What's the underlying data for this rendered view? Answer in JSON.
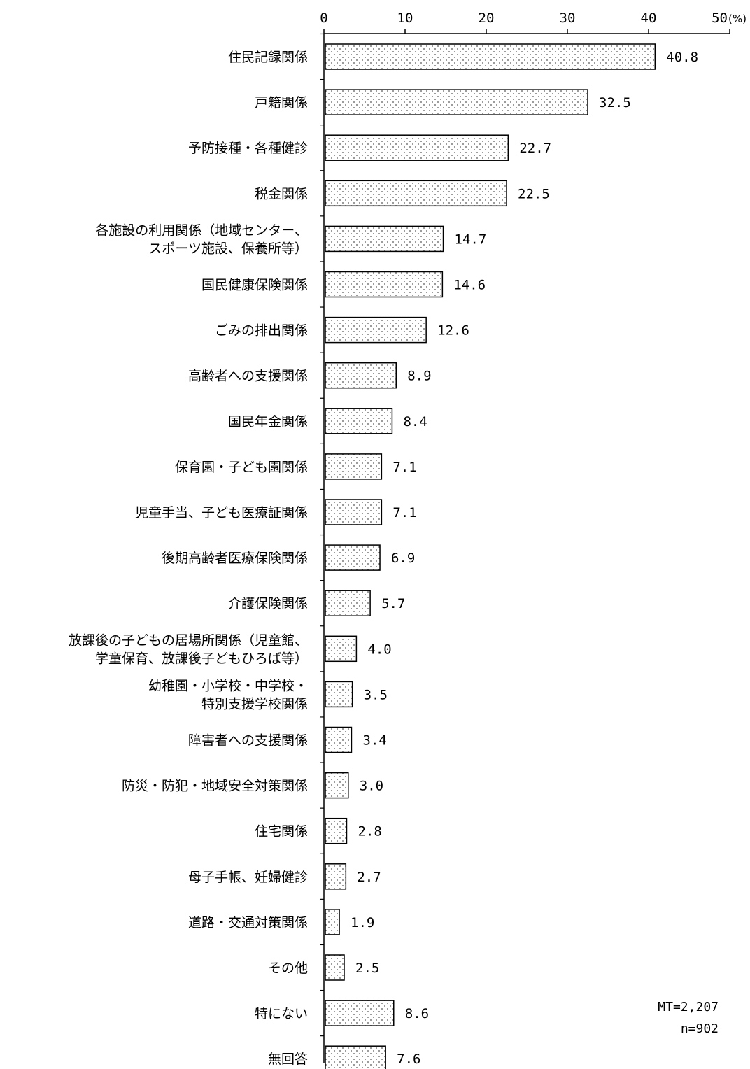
{
  "chart_data": {
    "type": "bar",
    "orientation": "horizontal",
    "xlim": [
      0,
      50
    ],
    "x_ticks": [
      "0",
      "10",
      "20",
      "30",
      "40",
      "50"
    ],
    "x_unit": "(%)",
    "categories": [
      [
        "住民記録関係"
      ],
      [
        "戸籍関係"
      ],
      [
        "予防接種・各種健診"
      ],
      [
        "税金関係"
      ],
      [
        "各施設の利用関係（地域センター、",
        "スポーツ施設、保養所等）"
      ],
      [
        "国民健康保険関係"
      ],
      [
        "ごみの排出関係"
      ],
      [
        "高齢者への支援関係"
      ],
      [
        "国民年金関係"
      ],
      [
        "保育園・子ども園関係"
      ],
      [
        "児童手当、子ども医療証関係"
      ],
      [
        "後期高齢者医療保険関係"
      ],
      [
        "介護保険関係"
      ],
      [
        "放課後の子どもの居場所関係（児童館、",
        "学童保育、放課後子どもひろば等）"
      ],
      [
        "幼稚園・小学校・中学校・",
        "特別支援学校関係"
      ],
      [
        "障害者への支援関係"
      ],
      [
        "防災・防犯・地域安全対策関係"
      ],
      [
        "住宅関係"
      ],
      [
        "母子手帳、妊婦健診"
      ],
      [
        "道路・交通対策関係"
      ],
      [
        "その他"
      ],
      [
        "特にない"
      ],
      [
        "無回答"
      ]
    ],
    "values": [
      40.8,
      32.5,
      22.7,
      22.5,
      14.7,
      14.6,
      12.6,
      8.9,
      8.4,
      7.1,
      7.1,
      6.9,
      5.7,
      4.0,
      3.5,
      3.4,
      3.0,
      2.8,
      2.7,
      1.9,
      2.5,
      8.6,
      7.6
    ],
    "value_labels": [
      "40.8",
      "32.5",
      "22.7",
      "22.5",
      "14.7",
      "14.6",
      "12.6",
      "8.9",
      "8.4",
      "7.1",
      "7.1",
      "6.9",
      "5.7",
      "4.0",
      "3.5",
      "3.4",
      "3.0",
      "2.8",
      "2.7",
      "1.9",
      "2.5",
      "8.6",
      "7.6"
    ],
    "bar_fill": "dotted",
    "annotations": [
      "MT=2,207",
      "n=902"
    ]
  }
}
